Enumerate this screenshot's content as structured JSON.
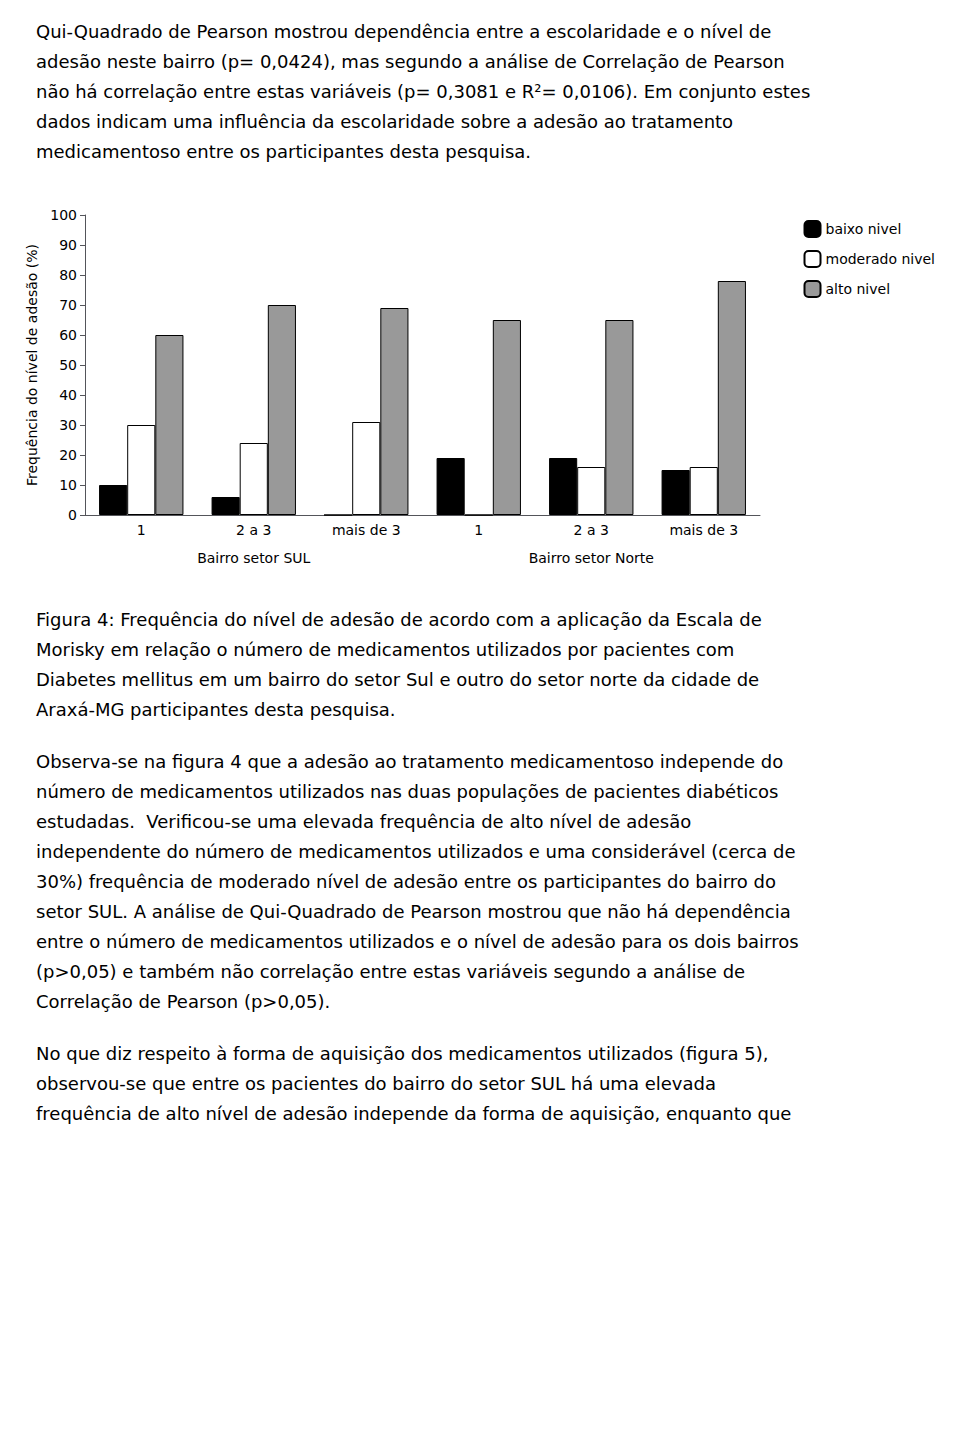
{
  "chart_data": {
    "type": "bar",
    "categories": [
      "1",
      "2 a 3",
      "mais de 3",
      "1",
      "2 a 3",
      "mais de 3"
    ],
    "series": [
      {
        "name": "baixo nivel",
        "color": "#000000",
        "values": [
          10,
          6,
          0,
          19,
          19,
          15
        ]
      },
      {
        "name": "moderado nivel",
        "color": "#ffffff",
        "values": [
          30,
          24,
          31,
          0,
          16,
          16
        ]
      },
      {
        "name": "alto nivel",
        "color": "#999999",
        "values": [
          60,
          70,
          69,
          65,
          65,
          78
        ]
      }
    ],
    "ylabel": "Frequência do nível de adesão (%)",
    "ylim": [
      0,
      100
    ],
    "yticks": [
      0,
      10,
      20,
      30,
      40,
      50,
      60,
      70,
      80,
      90,
      100
    ],
    "grid": false,
    "legend": "right",
    "annotations": [
      {
        "text": "Bairro setor SUL",
        "x": 1
      },
      {
        "text": "Bairro setor Norte",
        "x": 4
      }
    ]
  },
  "paragraphs": [
    [
      "Qui-Quadrado de Pearson mostrou dependência entre a escolaridade e o nível de",
      "adesão neste bairro (p= 0,0424), mas segundo a análise de Correlação de Pearson",
      "não há correlação entre estas variáveis (p= 0,3081 e R²= 0,0106). Em conjunto estes",
      "dados indicam uma influência da escolaridade sobre a adesão ao tratamento",
      "medicamentoso entre os participantes desta pesquisa."
    ],
    [
      "Figura 4: Frequência do nível de adesão de acordo com a aplicação da Escala de",
      "Morisky em relação o número de medicamentos utilizados por pacientes com",
      "Diabetes mellitus em um bairro do setor Sul e outro do setor norte da cidade de",
      "Araxá-MG participantes desta pesquisa."
    ],
    [
      "Observa-se na figura 4 que a adesão ao tratamento medicamentoso independe do",
      "número de medicamentos utilizados nas duas populações de pacientes diabéticos",
      "estudadas.  Verificou-se uma elevada frequência de alto nível de adesão",
      "independente do número de medicamentos utilizados e uma considerável (cerca de",
      "30%) frequência de moderado nível de adesão entre os participantes do bairro do",
      "setor SUL. A análise de Qui-Quadrado de Pearson mostrou que não há dependência",
      "entre o número de medicamentos utilizados e o nível de adesão para os dois bairros",
      "(p>0,05) e também não correlação entre estas variáveis segundo a análise de",
      "Correlação de Pearson (p>0,05)."
    ],
    [
      "No que diz respeito à forma de aquisição dos medicamentos utilizados (figura 5),",
      "observou-se que entre os pacientes do bairro do setor SUL há uma elevada",
      "frequência de alto nível de adesão independe da forma de aquisição, enquanto que"
    ]
  ]
}
